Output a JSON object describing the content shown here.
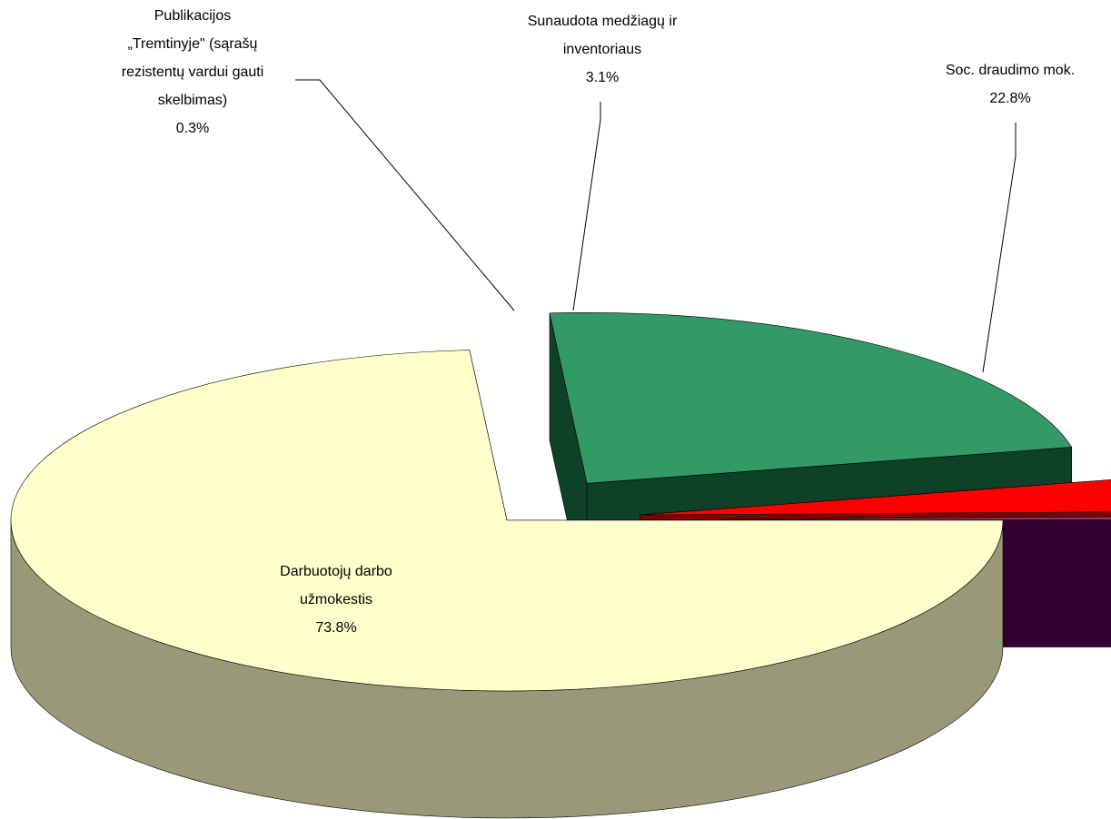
{
  "chart_data": {
    "type": "pie3d",
    "categories": [
      "Darbuotojų darbo\nužmokestis",
      "Soc. draudimo mok.",
      "Sunaudota medžiagų ir\ninventoriaus",
      "Publikacijos\n„Tremtinyje\" (sąrašų\nrezistentų vardui gauti\nskelbimas)"
    ],
    "values": [
      73.8,
      22.8,
      3.1,
      0.3
    ],
    "value_labels": [
      "73.8%",
      "22.8%",
      "3.1%",
      "0.3%"
    ],
    "colors": [
      "#ffffcc",
      "#339966",
      "#ff0000",
      "#993366"
    ],
    "side_colors": [
      "#99997a",
      "#0f4028",
      "#800000",
      "#330033"
    ],
    "exploded": [
      false,
      true,
      true,
      true
    ]
  }
}
